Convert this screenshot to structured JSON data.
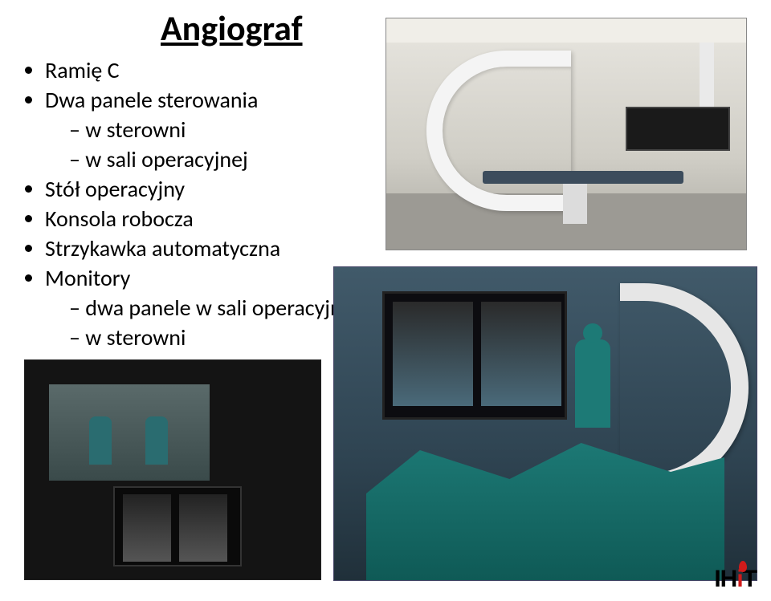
{
  "title": "Angiograf",
  "bullets": [
    {
      "text": "Ramię C",
      "sub": []
    },
    {
      "text": "Dwa panele sterowania",
      "sub": [
        "w sterowni",
        "w sali operacyjnej"
      ]
    },
    {
      "text": "Stół operacyjny",
      "sub": []
    },
    {
      "text": "Konsola robocza",
      "sub": []
    },
    {
      "text": "Strzykawka automatyczna",
      "sub": []
    },
    {
      "text": "Monitory",
      "sub": [
        "dwa panele w sali operacyjnej",
        "w sterowni"
      ]
    }
  ],
  "images": {
    "top_right": {
      "description": "Angiography suite with ceiling-mounted C-arm, patient table, and flat-panel monitor array in a clean white room",
      "colors": {
        "bg": "#e8e6e0",
        "floor": "#9c9a94",
        "equipment": "#f4f4f4",
        "monitor": "#1a1a1a",
        "table": "#3c4c5c"
      }
    },
    "bottom_left": {
      "description": "Dark control room (sterownia) — operators in scrubs viewed through a window, with a dual-screen fluoroscopy monitor in foreground",
      "colors": {
        "bg": "#141414",
        "window": "#3a4a4a",
        "scrubs": "#2a6c70",
        "monitor": "#0a0a0a"
      }
    },
    "bottom_right": {
      "description": "Operating room during a procedure — large wall monitor with angiographic images, surgeons in teal scrubs, patient draped on table under the C-arm",
      "colors": {
        "bg": "#2f4452",
        "screen": "#0c0c10",
        "drape": "#1d7a76",
        "carm": "#e6e6e6"
      }
    }
  },
  "logo": {
    "text_left": "IH",
    "text_right": "T",
    "accent_color": "#d11b1b",
    "text_color": "#000000"
  }
}
